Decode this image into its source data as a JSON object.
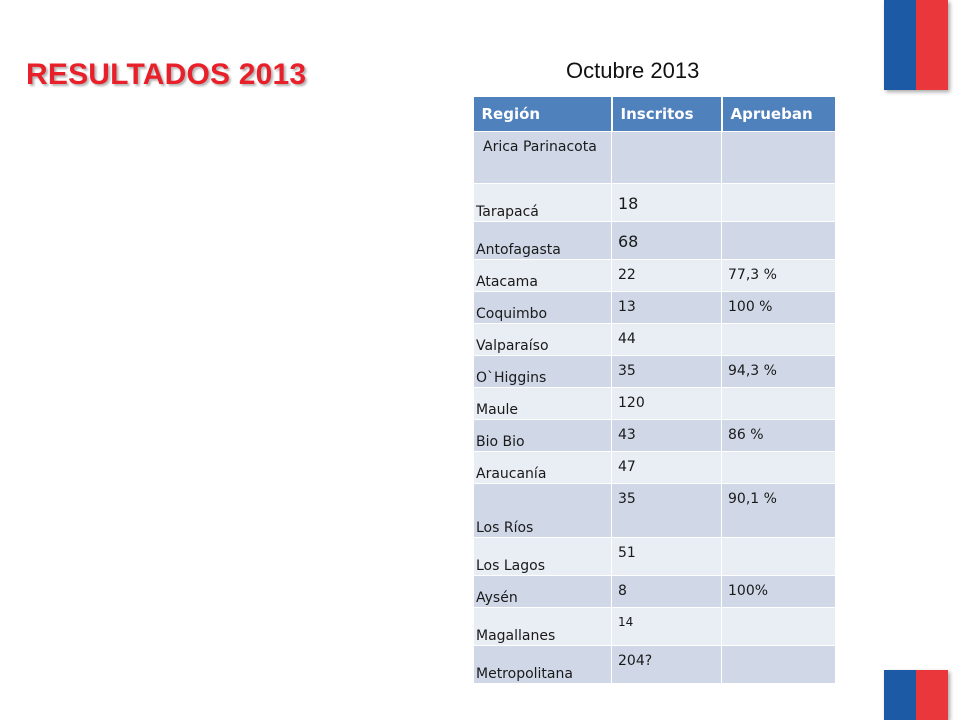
{
  "slide": {
    "title": "RESULTADOS 2013",
    "table_caption": "Octubre 2013"
  },
  "table": {
    "headers": [
      "Región",
      "Inscritos",
      "Aprueban"
    ],
    "rows": [
      {
        "region": "Arica Parinacota",
        "inscritos": "",
        "aprueban": ""
      },
      {
        "region": "Tarapacá",
        "inscritos": "18",
        "aprueban": ""
      },
      {
        "region": "Antofagasta",
        "inscritos": "68",
        "aprueban": ""
      },
      {
        "region": "Atacama",
        "inscritos": "22",
        "aprueban": "77,3 %"
      },
      {
        "region": "Coquimbo",
        "inscritos": "13",
        "aprueban": "100 %"
      },
      {
        "region": "Valparaíso",
        "inscritos": "44",
        "aprueban": ""
      },
      {
        "region": "O`Higgins",
        "inscritos": "35",
        "aprueban": "94,3 %"
      },
      {
        "region": "Maule",
        "inscritos": "120",
        "aprueban": ""
      },
      {
        "region": "Bio Bio",
        "inscritos": "43",
        "aprueban": "86 %"
      },
      {
        "region": "Araucanía",
        "inscritos": "47",
        "aprueban": ""
      },
      {
        "region": "Los Ríos",
        "inscritos": "35",
        "aprueban": "90,1 %"
      },
      {
        "region": "Los Lagos",
        "inscritos": "51",
        "aprueban": ""
      },
      {
        "region": "Aysén",
        "inscritos": "8",
        "aprueban": "100%"
      },
      {
        "region": "Magallanes",
        "inscritos": "14",
        "aprueban": ""
      },
      {
        "region": "Metropolitana",
        "inscritos": "204?",
        "aprueban": ""
      }
    ]
  },
  "colors": {
    "title": "#e8202a",
    "header_bg": "#4f81bd",
    "row_odd": "#d0d8e8",
    "row_even": "#e9edf4",
    "flag_blue": "#1d5aa6",
    "flag_red": "#e9373c"
  }
}
